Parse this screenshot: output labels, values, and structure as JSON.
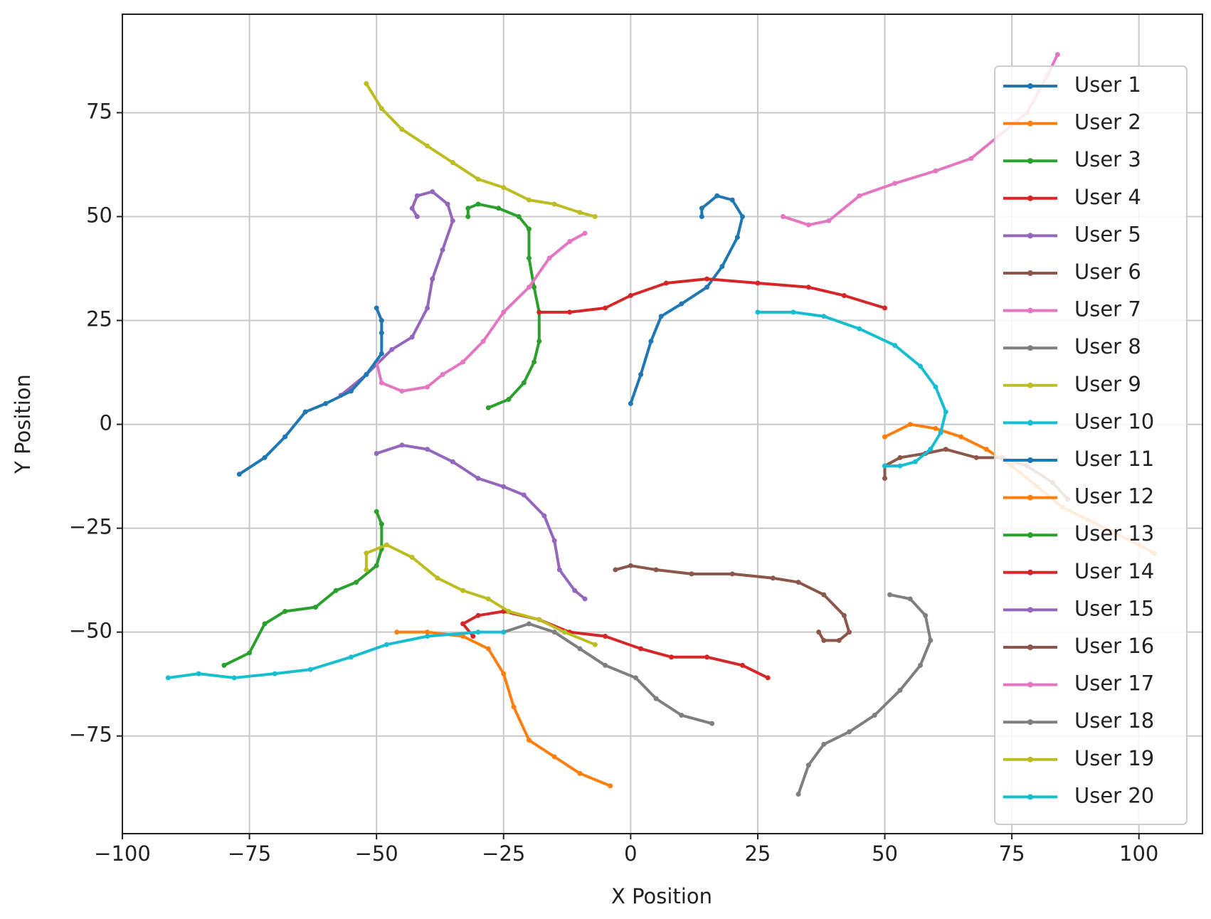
{
  "chart_data": {
    "type": "line",
    "xlabel": "X Position",
    "ylabel": "Y Position",
    "xlim": [
      -100,
      112.5
    ],
    "ylim": [
      -98.5,
      98.7
    ],
    "xticks": [
      {
        "value": -100,
        "label": "−100"
      },
      {
        "value": -75,
        "label": "−75"
      },
      {
        "value": -50,
        "label": "−50"
      },
      {
        "value": -25,
        "label": "−25"
      },
      0,
      25,
      50,
      75,
      100
    ],
    "yticks": [
      {
        "value": -75,
        "label": "−75"
      },
      {
        "value": -50,
        "label": "−50"
      },
      {
        "value": -25,
        "label": "−25"
      },
      0,
      25,
      50,
      75
    ],
    "grid": true,
    "legend": "upper right",
    "series": [
      {
        "name": "User 1",
        "color": "#1f77b4",
        "x": [
          0,
          2,
          4,
          6,
          10,
          15,
          18,
          21,
          22,
          20,
          17,
          14,
          14
        ],
        "values": [
          5,
          12,
          20,
          26,
          29,
          33,
          38,
          45,
          50,
          54,
          55,
          52,
          50
        ]
      },
      {
        "name": "User 2",
        "color": "#ff7f0e",
        "x": [
          50,
          55,
          60,
          65,
          70,
          75,
          80,
          85,
          90,
          95,
          100,
          103
        ],
        "values": [
          -3,
          0,
          -1,
          -3,
          -6,
          -10,
          -15,
          -20,
          -23,
          -26,
          -29,
          -31
        ]
      },
      {
        "name": "User 3",
        "color": "#2ca02c",
        "x": [
          -28,
          -24,
          -21,
          -19,
          -18,
          -18,
          -19,
          -20,
          -20,
          -22,
          -26,
          -30,
          -32,
          -32
        ],
        "values": [
          4,
          6,
          10,
          15,
          20,
          27,
          33,
          40,
          47,
          50,
          52,
          53,
          52,
          50
        ]
      },
      {
        "name": "User 4",
        "color": "#d62728",
        "x": [
          -18,
          -12,
          -5,
          0,
          7,
          15,
          25,
          35,
          42,
          50
        ],
        "values": [
          27,
          27,
          28,
          31,
          34,
          35,
          34,
          33,
          31,
          28
        ]
      },
      {
        "name": "User 5",
        "color": "#9467bd",
        "x": [
          -57,
          -52,
          -47,
          -43,
          -40,
          -39,
          -37,
          -35,
          -36,
          -39,
          -42,
          -43,
          -42
        ],
        "values": [
          7,
          12,
          18,
          21,
          28,
          35,
          42,
          49,
          53,
          56,
          55,
          52,
          50
        ]
      },
      {
        "name": "User 6",
        "color": "#8c564b",
        "x": [
          50,
          50,
          53,
          58,
          62,
          68,
          73,
          78,
          83,
          86
        ],
        "values": [
          -13,
          -10,
          -8,
          -7,
          -6,
          -8,
          -8,
          -10,
          -14,
          -18
        ]
      },
      {
        "name": "User 7",
        "color": "#e377c2",
        "x": [
          -50,
          -49,
          -45,
          -40,
          -37,
          -33,
          -29,
          -25,
          -20,
          -16,
          -12,
          -9
        ],
        "values": [
          15,
          10,
          8,
          9,
          12,
          15,
          20,
          27,
          33,
          40,
          44,
          46
        ]
      },
      {
        "name": "User 8",
        "color": "#7f7f7f",
        "x": [
          33,
          35,
          38,
          43,
          48,
          53,
          57,
          59,
          58,
          55,
          51
        ],
        "values": [
          -89,
          -82,
          -77,
          -74,
          -70,
          -64,
          -58,
          -52,
          -46,
          -42,
          -41
        ]
      },
      {
        "name": "User 9",
        "color": "#bcbd22",
        "x": [
          -52,
          -49,
          -45,
          -40,
          -35,
          -30,
          -25,
          -20,
          -15,
          -10,
          -7
        ],
        "values": [
          82,
          76,
          71,
          67,
          63,
          59,
          57,
          54,
          53,
          51,
          50
        ]
      },
      {
        "name": "User 10",
        "color": "#17becf",
        "x": [
          25,
          32,
          38,
          45,
          52,
          57,
          60,
          62,
          61,
          59,
          56,
          53,
          50
        ],
        "values": [
          27,
          27,
          26,
          23,
          19,
          14,
          9,
          3,
          -2,
          -6,
          -9,
          -10,
          -10
        ]
      },
      {
        "name": "User 11",
        "color": "#1f77b4",
        "x": [
          -77,
          -72,
          -68,
          -64,
          -60,
          -55,
          -52,
          -49,
          -49,
          -49,
          -50
        ],
        "values": [
          -12,
          -8,
          -3,
          3,
          5,
          8,
          12,
          17,
          22,
          25,
          28
        ]
      },
      {
        "name": "User 12",
        "color": "#ff7f0e",
        "x": [
          -46,
          -40,
          -33,
          -28,
          -25,
          -23,
          -20,
          -15,
          -10,
          -4
        ],
        "values": [
          -50,
          -50,
          -51,
          -54,
          -60,
          -68,
          -76,
          -80,
          -84,
          -87
        ]
      },
      {
        "name": "User 13",
        "color": "#2ca02c",
        "x": [
          -80,
          -75,
          -72,
          -68,
          -62,
          -58,
          -54,
          -50,
          -49,
          -49,
          -50
        ],
        "values": [
          -58,
          -55,
          -48,
          -45,
          -44,
          -40,
          -38,
          -34,
          -30,
          -24,
          -21
        ]
      },
      {
        "name": "User 14",
        "color": "#d62728",
        "x": [
          -31,
          -33,
          -30,
          -25,
          -18,
          -12,
          -5,
          2,
          8,
          15,
          22,
          27
        ],
        "values": [
          -51,
          -48,
          -46,
          -45,
          -47,
          -50,
          -51,
          -54,
          -56,
          -56,
          -58,
          -61
        ]
      },
      {
        "name": "User 15",
        "color": "#9467bd",
        "x": [
          -50,
          -45,
          -40,
          -35,
          -30,
          -25,
          -21,
          -17,
          -15,
          -14,
          -11,
          -9
        ],
        "values": [
          -7,
          -5,
          -6,
          -9,
          -13,
          -15,
          -17,
          -22,
          -28,
          -35,
          -40,
          -42
        ]
      },
      {
        "name": "User 16",
        "color": "#8c564b",
        "x": [
          -3,
          0,
          5,
          12,
          20,
          28,
          33,
          38,
          42,
          43,
          41,
          38,
          37
        ],
        "values": [
          -35,
          -34,
          -35,
          -36,
          -36,
          -37,
          -38,
          -41,
          -46,
          -50,
          -52,
          -52,
          -50
        ]
      },
      {
        "name": "User 17",
        "color": "#e377c2",
        "x": [
          30,
          35,
          39,
          45,
          52,
          60,
          67,
          72,
          78,
          82,
          84
        ],
        "values": [
          50,
          48,
          49,
          55,
          58,
          61,
          64,
          69,
          75,
          84,
          89
        ]
      },
      {
        "name": "User 18",
        "color": "#7f7f7f",
        "x": [
          -25,
          -20,
          -15,
          -10,
          -5,
          1,
          5,
          10,
          16
        ],
        "values": [
          -50,
          -48,
          -50,
          -54,
          -58,
          -61,
          -66,
          -70,
          -72
        ]
      },
      {
        "name": "User 19",
        "color": "#bcbd22",
        "x": [
          -52,
          -52,
          -48,
          -43,
          -38,
          -33,
          -28,
          -24,
          -18,
          -13,
          -7
        ],
        "values": [
          -35,
          -31,
          -29,
          -32,
          -37,
          -40,
          -42,
          -45,
          -47,
          -50,
          -53
        ]
      },
      {
        "name": "User 20",
        "color": "#17becf",
        "x": [
          -91,
          -85,
          -78,
          -70,
          -63,
          -55,
          -48,
          -40,
          -30,
          -25
        ],
        "values": [
          -61,
          -60,
          -61,
          -60,
          -59,
          -56,
          -53,
          -51,
          -50,
          -50
        ]
      }
    ]
  }
}
